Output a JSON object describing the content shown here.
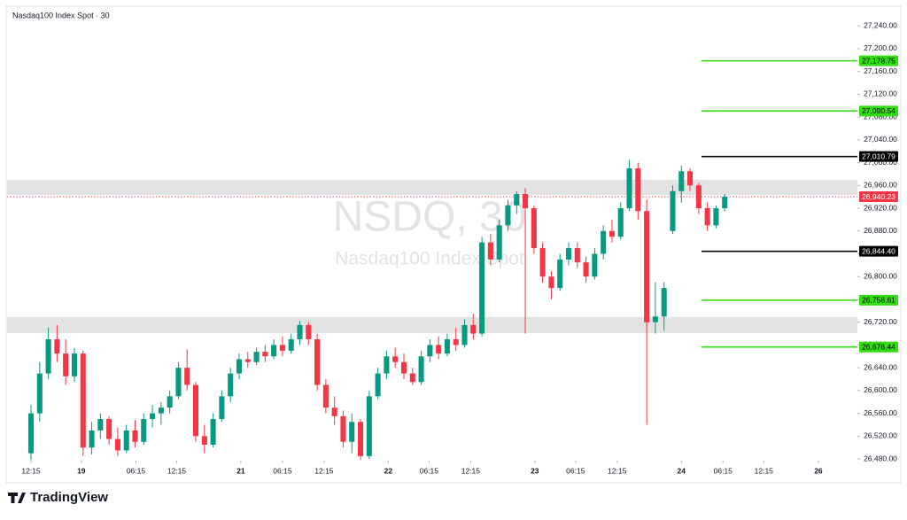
{
  "chart_data": {
    "type": "candlestick",
    "title": "Nasdaq100 Index Spot · 30",
    "watermark": [
      "NSDQ, 30",
      "Nasdaq100 Index Spot"
    ],
    "up_color": "#089981",
    "down_color": "#f23645",
    "open": [
      26490,
      26560,
      26630,
      26690,
      26665,
      26625,
      26665,
      26500,
      26530,
      26550,
      26515,
      26495,
      26530,
      26510,
      26550,
      26560,
      26570,
      26590,
      26640,
      26610,
      26520,
      26505,
      26550,
      26590,
      26630,
      26655,
      26650,
      26668,
      26660,
      26680,
      26670,
      26690,
      26715,
      26690,
      26610,
      26570,
      26555,
      26510,
      26545,
      26485,
      26590,
      26630,
      26660,
      26650,
      26630,
      26615,
      26660,
      26680,
      26665,
      26690,
      26680,
      26715,
      26700,
      26860,
      26830,
      26890,
      26925,
      26945,
      26920,
      26850,
      26800,
      26780,
      26830,
      26850,
      26825,
      26800,
      26840,
      26880,
      26870,
      26920,
      26990,
      26915,
      26720,
      26730,
      26880,
      26950,
      26985,
      26960,
      26920,
      26890,
      26920
    ],
    "high": [
      26575,
      26650,
      26710,
      26715,
      26690,
      26675,
      26670,
      26545,
      26560,
      26555,
      26535,
      26540,
      26548,
      26560,
      26575,
      26580,
      26600,
      26650,
      26672,
      26615,
      26540,
      26560,
      26600,
      26640,
      26665,
      26668,
      26675,
      26680,
      26690,
      26695,
      26700,
      26722,
      26720,
      26700,
      26620,
      26590,
      26565,
      26560,
      26550,
      26600,
      26640,
      26670,
      26675,
      26665,
      26640,
      26670,
      26690,
      26695,
      26700,
      26710,
      26725,
      26735,
      26870,
      26875,
      26900,
      26935,
      26950,
      26955,
      26925,
      26860,
      26810,
      26840,
      26860,
      26860,
      26835,
      26850,
      26890,
      26900,
      26930,
      27005,
      27000,
      26935,
      26790,
      26790,
      26960,
      26995,
      26990,
      26965,
      26930,
      26925,
      26945
    ],
    "low": [
      26478,
      26545,
      26620,
      26650,
      26610,
      26615,
      26485,
      26488,
      26515,
      26505,
      26485,
      26490,
      26500,
      26505,
      26535,
      26540,
      26560,
      26585,
      26600,
      26510,
      26490,
      26500,
      26545,
      26580,
      26620,
      26640,
      26645,
      26650,
      26655,
      26660,
      26665,
      26680,
      26680,
      26600,
      26560,
      26540,
      26500,
      26490,
      26478,
      26480,
      26585,
      26620,
      26640,
      26620,
      26610,
      26610,
      26650,
      26655,
      26660,
      26670,
      26675,
      26690,
      26695,
      26820,
      26825,
      26880,
      26910,
      26700,
      26840,
      26790,
      26760,
      26775,
      26820,
      26815,
      26790,
      26795,
      26830,
      26860,
      26865,
      26915,
      26900,
      26540,
      26700,
      26705,
      26875,
      26930,
      26950,
      26910,
      26880,
      26885,
      26915
    ],
    "close": [
      26560,
      26630,
      26690,
      26665,
      26625,
      26665,
      26500,
      26530,
      26550,
      26515,
      26495,
      26530,
      26510,
      26550,
      26560,
      26570,
      26590,
      26640,
      26610,
      26520,
      26505,
      26550,
      26590,
      26630,
      26655,
      26650,
      26668,
      26660,
      26680,
      26670,
      26690,
      26715,
      26690,
      26610,
      26570,
      26555,
      26510,
      26545,
      26485,
      26590,
      26630,
      26660,
      26650,
      26630,
      26615,
      26660,
      26680,
      26665,
      26690,
      26680,
      26715,
      26700,
      26860,
      26830,
      26890,
      26925,
      26945,
      26920,
      26850,
      26800,
      26780,
      26830,
      26850,
      26825,
      26800,
      26840,
      26880,
      26870,
      26920,
      26990,
      26915,
      26720,
      26730,
      26780,
      26950,
      26985,
      26960,
      26920,
      26890,
      26920,
      26940.23
    ],
    "xlim": [
      -2.76,
      95.3
    ],
    "xticks": [
      {
        "value": 0,
        "label": "12:15"
      },
      {
        "value": 5.8,
        "label": "19"
      },
      {
        "value": 12.1,
        "label": "06:15"
      },
      {
        "value": 16.8,
        "label": "12:15"
      },
      {
        "value": 24.2,
        "label": "21"
      },
      {
        "value": 29.0,
        "label": "06:15"
      },
      {
        "value": 33.8,
        "label": "12:15"
      },
      {
        "value": 41.2,
        "label": "22"
      },
      {
        "value": 45.9,
        "label": "06:15"
      },
      {
        "value": 50.7,
        "label": "12:15"
      },
      {
        "value": 58.1,
        "label": "23"
      },
      {
        "value": 62.8,
        "label": "06:15"
      },
      {
        "value": 67.6,
        "label": "12:15"
      },
      {
        "value": 75.0,
        "label": "24"
      },
      {
        "value": 79.8,
        "label": "06:15"
      },
      {
        "value": 84.5,
        "label": "12:15"
      },
      {
        "value": 90.8,
        "label": "26"
      }
    ],
    "ylim": [
      26477,
      27273
    ],
    "yticks": [
      {
        "value": 27240,
        "label": "27,240.00"
      },
      {
        "value": 27200,
        "label": "27,200.00"
      },
      {
        "value": 27160,
        "label": "27,160.00"
      },
      {
        "value": 27120,
        "label": "27,120.00"
      },
      {
        "value": 27080,
        "label": "27,080.00"
      },
      {
        "value": 27040,
        "label": "27,040.00"
      },
      {
        "value": 27000,
        "label": "27,000.00"
      },
      {
        "value": 26960,
        "label": "26,960.00"
      },
      {
        "value": 26920,
        "label": "26,920.00"
      },
      {
        "value": 26880,
        "label": "26,880.00"
      },
      {
        "value": 26840,
        "label": "26,840.00"
      },
      {
        "value": 26800,
        "label": "26,800.00"
      },
      {
        "value": 26760,
        "label": "26,760.00"
      },
      {
        "value": 26720,
        "label": "26,720.00"
      },
      {
        "value": 26680,
        "label": "26,680.00"
      },
      {
        "value": 26640,
        "label": "26,640.00"
      },
      {
        "value": 26600,
        "label": "26,600.00"
      },
      {
        "value": 26560,
        "label": "26,560.00"
      },
      {
        "value": 26520,
        "label": "26,520.00"
      },
      {
        "value": 26480,
        "label": "26,480.00"
      }
    ],
    "zones": [
      [
        26943,
        26970
      ],
      [
        26701,
        26729
      ]
    ],
    "zone_color": "#e0e0e0",
    "levels": [
      {
        "value": 27178.75,
        "label": "27,178.75",
        "color": "#33dd11"
      },
      {
        "value": 27090.54,
        "label": "27,090.54",
        "color": "#33dd11"
      },
      {
        "value": 27010.79,
        "label": "27,010.79",
        "color": "#000000"
      },
      {
        "value": 26844.4,
        "label": "26,844.40",
        "color": "#000000"
      },
      {
        "value": 26758.61,
        "label": "26,758.61",
        "color": "#33dd11"
      },
      {
        "value": 26676.44,
        "label": "26,676.44",
        "color": "#33dd11"
      }
    ],
    "last_price": {
      "value": 26940.23,
      "label": "26,940.23",
      "color": "#f23645"
    }
  },
  "footer": {
    "brand": "TradingView"
  }
}
